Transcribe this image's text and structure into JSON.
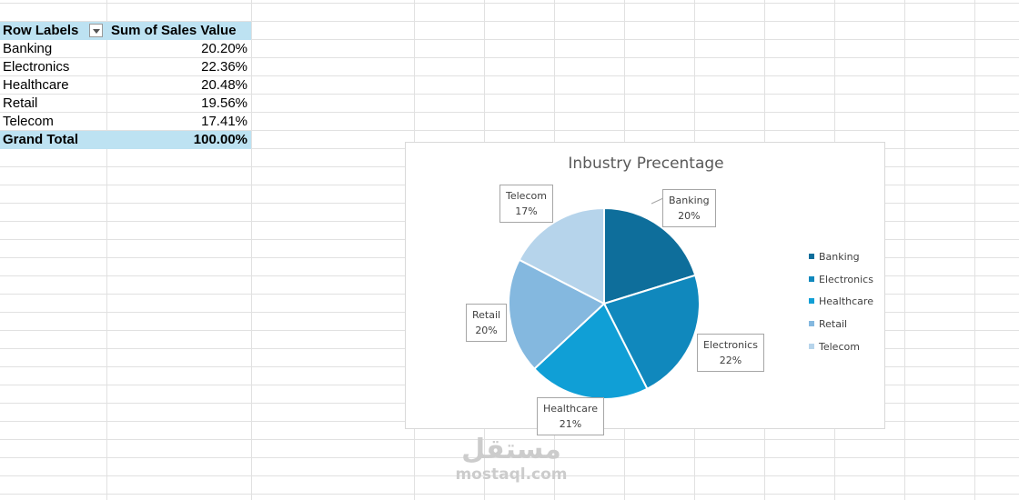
{
  "pivot": {
    "header": {
      "row_labels": "Row Labels",
      "sum_label": "Sum of Sales Value"
    },
    "rows": [
      {
        "label": "Banking",
        "value": "20.20%"
      },
      {
        "label": "Electronics",
        "value": "22.36%"
      },
      {
        "label": "Healthcare",
        "value": "20.48%"
      },
      {
        "label": "Retail",
        "value": "19.56%"
      },
      {
        "label": "Telecom",
        "value": "17.41%"
      }
    ],
    "total": {
      "label": "Grand Total",
      "value": "100.00%"
    }
  },
  "chart_data": {
    "type": "pie",
    "title": "Inbustry Precentage",
    "categories": [
      "Banking",
      "Electronics",
      "Healthcare",
      "Retail",
      "Telecom"
    ],
    "values": [
      20.2,
      22.36,
      20.48,
      19.56,
      17.41
    ],
    "data_labels": [
      {
        "name": "Banking",
        "pct": "20%"
      },
      {
        "name": "Electronics",
        "pct": "22%"
      },
      {
        "name": "Healthcare",
        "pct": "21%"
      },
      {
        "name": "Retail",
        "pct": "20%"
      },
      {
        "name": "Telecom",
        "pct": "17%"
      }
    ],
    "colors": [
      "#0e6e9b",
      "#1088bd",
      "#109fd6",
      "#84b8df",
      "#b6d4eb"
    ],
    "legend_position": "right",
    "start_angle": "12 o'clock",
    "direction": "clockwise"
  },
  "watermark": {
    "arabic": "مستقل",
    "latin": "mostaql.com"
  }
}
